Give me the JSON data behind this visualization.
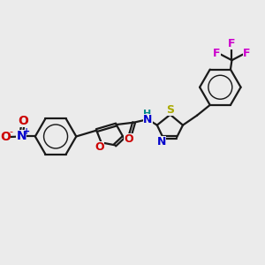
{
  "bg_color": "#ebebeb",
  "bond_color": "#1a1a1a",
  "N_color": "#0000cc",
  "O_color": "#cc0000",
  "S_color": "#aaaa00",
  "F_color": "#cc00cc",
  "H_color": "#008888",
  "line_width": 1.6,
  "font_size": 9,
  "figsize": [
    3.0,
    3.0
  ],
  "dpi": 100,
  "xlim": [
    0,
    10
  ],
  "ylim": [
    0,
    10
  ]
}
